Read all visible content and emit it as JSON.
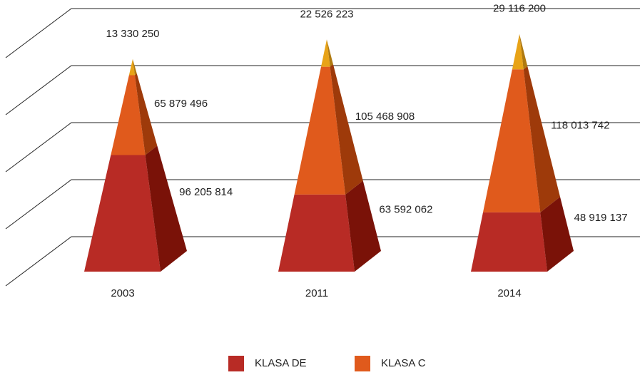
{
  "chart_data": {
    "type": "pyramid",
    "categories": [
      "2003",
      "2011",
      "2014"
    ],
    "series": [
      {
        "name": "KLASA DE",
        "color": "#b82b25",
        "side_color": "#7a1208",
        "values": [
          96205814,
          63592062,
          48919137
        ],
        "value_labels": [
          "96 205 814",
          "63 592 062",
          "48 919 137"
        ]
      },
      {
        "name": "KLASA C",
        "color": "#e05a1c",
        "side_color": "#9e3a0a",
        "values": [
          65879496,
          105468908,
          118013742
        ],
        "value_labels": [
          "65 879 496",
          "105 468 908",
          "118 013 742"
        ]
      },
      {
        "color": "#e8a317",
        "side_color": "#b07a10",
        "values": [
          13330250,
          22526223,
          29116200
        ],
        "value_labels": [
          "13 330 250",
          "22 526 223",
          "29 116 200"
        ]
      }
    ],
    "ylim": [
      0,
      200000000
    ],
    "yticks": [
      0,
      50000000,
      100000000,
      150000000,
      200000000
    ],
    "grid": true
  }
}
